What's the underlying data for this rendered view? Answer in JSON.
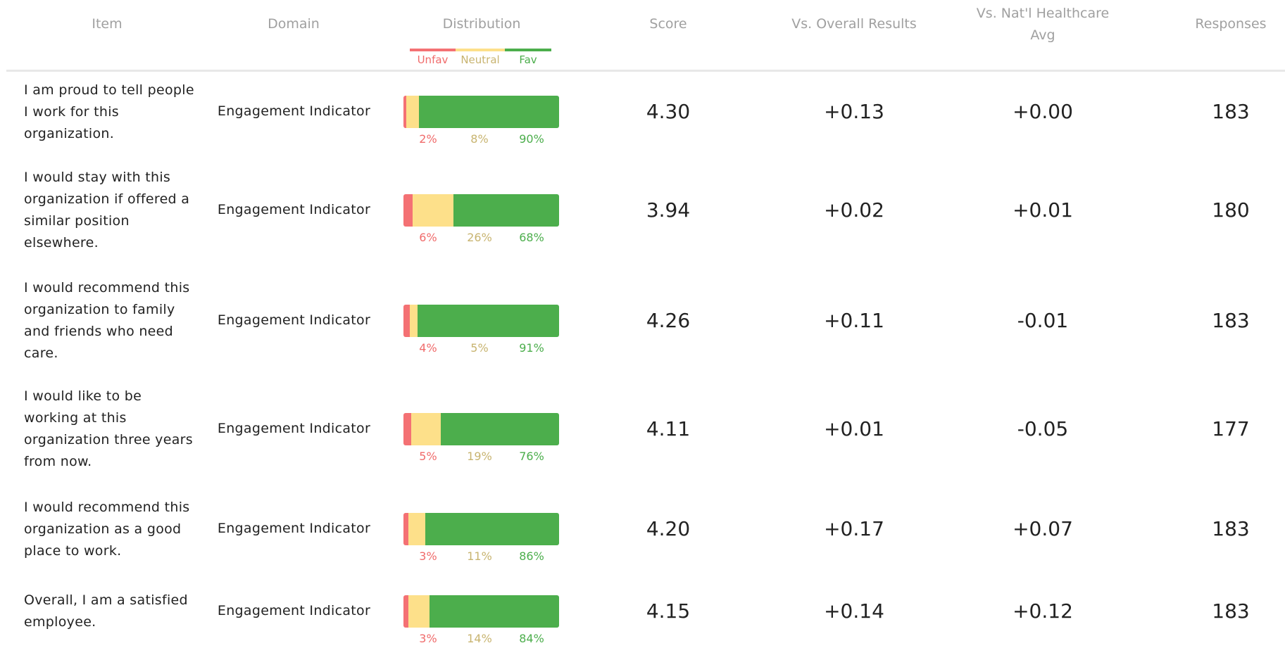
{
  "header": {
    "columns": [
      "Item",
      "Domain",
      "Distribution",
      "Score",
      "Vs. Overall Results",
      "Vs. Nat'l Healthcare Avg",
      "Responses"
    ],
    "legend": [
      "Unfav",
      "Neutral",
      "Fav"
    ]
  },
  "table": {
    "rows": [
      {
        "item": "I am proud to tell people I work for this organization.",
        "domain": "Engagement Indicator",
        "distribution": {
          "values": [
            2,
            8,
            90
          ],
          "value_labels": [
            "2%",
            "8%",
            "90%"
          ]
        },
        "score": "4.30",
        "vs_overall": "+0.13",
        "vs_national": "+0.00",
        "responses": "183"
      },
      {
        "item": "I would stay with this organization if offered a similar position elsewhere.",
        "domain": "Engagement Indicator",
        "distribution": {
          "values": [
            6,
            26,
            68
          ],
          "value_labels": [
            "6%",
            "26%",
            "68%"
          ]
        },
        "score": "3.94",
        "vs_overall": "+0.02",
        "vs_national": "+0.01",
        "responses": "180"
      },
      {
        "item": "I would recommend this organization to family and friends who need care.",
        "domain": "Engagement Indicator",
        "distribution": {
          "values": [
            4,
            5,
            91
          ],
          "value_labels": [
            "4%",
            "5%",
            "91%"
          ]
        },
        "score": "4.26",
        "vs_overall": "+0.11",
        "vs_national": "-0.01",
        "responses": "183"
      },
      {
        "item": "I would like to be working at this organization three years from now.",
        "domain": "Engagement Indicator",
        "distribution": {
          "values": [
            5,
            19,
            76
          ],
          "value_labels": [
            "5%",
            "19%",
            "76%"
          ]
        },
        "score": "4.11",
        "vs_overall": "+0.01",
        "vs_national": "-0.05",
        "responses": "177"
      },
      {
        "item": "I would recommend this organization as a good place to work.",
        "domain": "Engagement Indicator",
        "distribution": {
          "values": [
            3,
            11,
            86
          ],
          "value_labels": [
            "3%",
            "11%",
            "86%"
          ]
        },
        "score": "4.20",
        "vs_overall": "+0.17",
        "vs_national": "+0.07",
        "responses": "183"
      },
      {
        "item": "Overall, I am a satisfied employee.",
        "domain": "Engagement Indicator",
        "distribution": {
          "values": [
            3,
            14,
            84
          ],
          "value_labels": [
            "3%",
            "14%",
            "84%"
          ]
        },
        "score": "4.15",
        "vs_overall": "+0.14",
        "vs_national": "+0.12",
        "responses": "183"
      }
    ]
  }
}
